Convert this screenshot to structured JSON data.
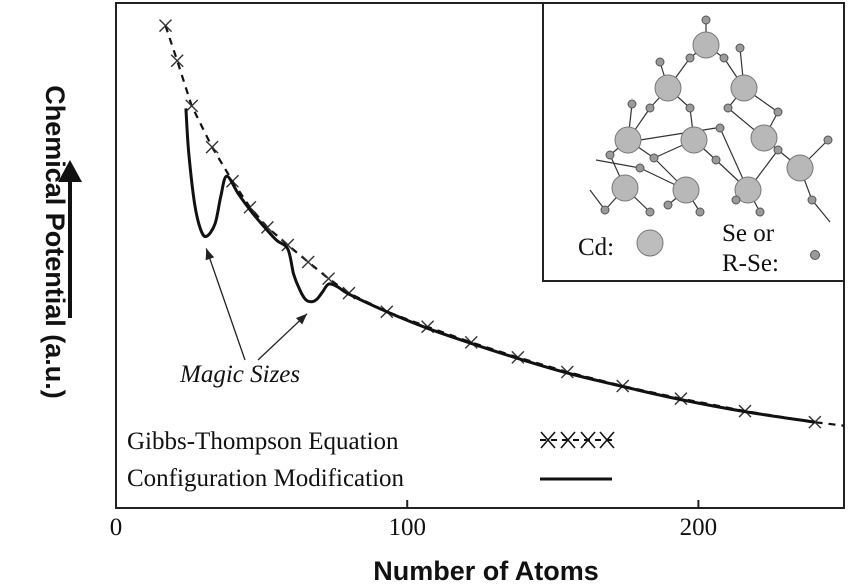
{
  "chart_data": {
    "type": "line",
    "title": "",
    "xlabel": "Number of Atoms",
    "ylabel": "Chemical Potential (a.u.)",
    "xlim": [
      0,
      250
    ],
    "ylim": [
      0,
      1
    ],
    "xticks": [
      {
        "value": 0,
        "label": "0"
      },
      {
        "value": 100,
        "label": "100"
      },
      {
        "value": 200,
        "label": "200"
      }
    ],
    "grid": false,
    "legend_position": "bottom-left",
    "series": [
      {
        "name": "Gibbs-Thompson Equation",
        "style": "dashed-with-crosses",
        "x": [
          17,
          21,
          26,
          33,
          40,
          46,
          52,
          59,
          66,
          73,
          80,
          93,
          107,
          122,
          138,
          155,
          174,
          194,
          216,
          240,
          250
        ],
        "y": [
          0.955,
          0.885,
          0.795,
          0.713,
          0.645,
          0.593,
          0.553,
          0.518,
          0.484,
          0.451,
          0.422,
          0.385,
          0.355,
          0.324,
          0.294,
          0.265,
          0.237,
          0.212,
          0.187,
          0.165,
          0.158
        ]
      },
      {
        "name": "Configuration Modification",
        "style": "solid",
        "x": [
          24,
          25,
          27,
          29,
          31,
          34,
          36,
          38,
          42,
          46,
          50,
          55,
          59,
          61,
          63,
          65,
          67,
          69,
          71,
          73,
          76,
          80,
          93,
          107,
          122,
          138,
          155,
          174,
          194,
          216,
          240
        ],
        "y": [
          0.79,
          0.7,
          0.6,
          0.55,
          0.535,
          0.56,
          0.615,
          0.655,
          0.62,
          0.588,
          0.56,
          0.528,
          0.51,
          0.46,
          0.43,
          0.41,
          0.405,
          0.41,
          0.425,
          0.44,
          0.435,
          0.42,
          0.385,
          0.352,
          0.322,
          0.292,
          0.263,
          0.236,
          0.21,
          0.186,
          0.165
        ]
      }
    ],
    "annotations": [
      {
        "text": "Magic Sizes",
        "arrows_to": [
          [
            31,
            0.535
          ],
          [
            67,
            0.405
          ]
        ]
      }
    ],
    "inset": {
      "type": "molecular-structure-diagram",
      "legend": [
        {
          "label": "Cd:",
          "symbol": "large-grey-sphere"
        },
        {
          "label": "Se or",
          "symbol": ""
        },
        {
          "label": "R-Se:",
          "symbol": "small-grey-sphere"
        }
      ]
    },
    "colors": {
      "line": "#111111",
      "cd_sphere": "#b8b8b8",
      "se_sphere": "#9a9a9a"
    }
  }
}
